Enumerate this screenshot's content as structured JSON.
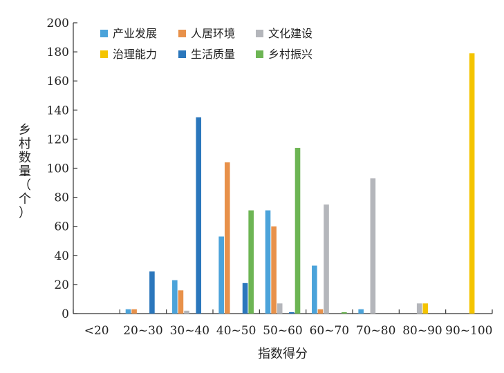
{
  "chart_data": {
    "type": "bar",
    "xlabel": "指数得分",
    "ylabel": "乡村数量（个）",
    "ylim": [
      0,
      200
    ],
    "yticks": [
      "0",
      "20",
      "40",
      "60",
      "80",
      "100",
      "120",
      "140",
      "160",
      "180",
      "200"
    ],
    "categories": [
      "<20",
      "20~30",
      "30~40",
      "40~50",
      "50~60",
      "60~70",
      "70~80",
      "80~90",
      "90~100"
    ],
    "series": [
      {
        "name": "产业发展",
        "color": "#4BA3DA",
        "values": [
          0,
          3,
          23,
          53,
          71,
          33,
          3,
          0,
          0
        ]
      },
      {
        "name": "人居环境",
        "color": "#E8914A",
        "values": [
          0,
          3,
          16,
          104,
          60,
          3,
          0,
          0,
          0
        ]
      },
      {
        "name": "文化建设",
        "color": "#B4B6BB",
        "values": [
          0,
          0,
          2,
          0,
          7,
          75,
          93,
          7,
          0
        ]
      },
      {
        "name": "治理能力",
        "color": "#F4C400",
        "values": [
          0,
          0,
          0,
          0,
          0,
          0,
          0,
          7,
          179
        ]
      },
      {
        "name": "生活质量",
        "color": "#2B77BC",
        "values": [
          0,
          29,
          135,
          21,
          1,
          0,
          0,
          0,
          0
        ]
      },
      {
        "name": "乡村振兴",
        "color": "#6DB554",
        "values": [
          0,
          0,
          0,
          71,
          114,
          1,
          0,
          0,
          0
        ]
      }
    ],
    "legend_position": "top-left",
    "grid": false
  }
}
